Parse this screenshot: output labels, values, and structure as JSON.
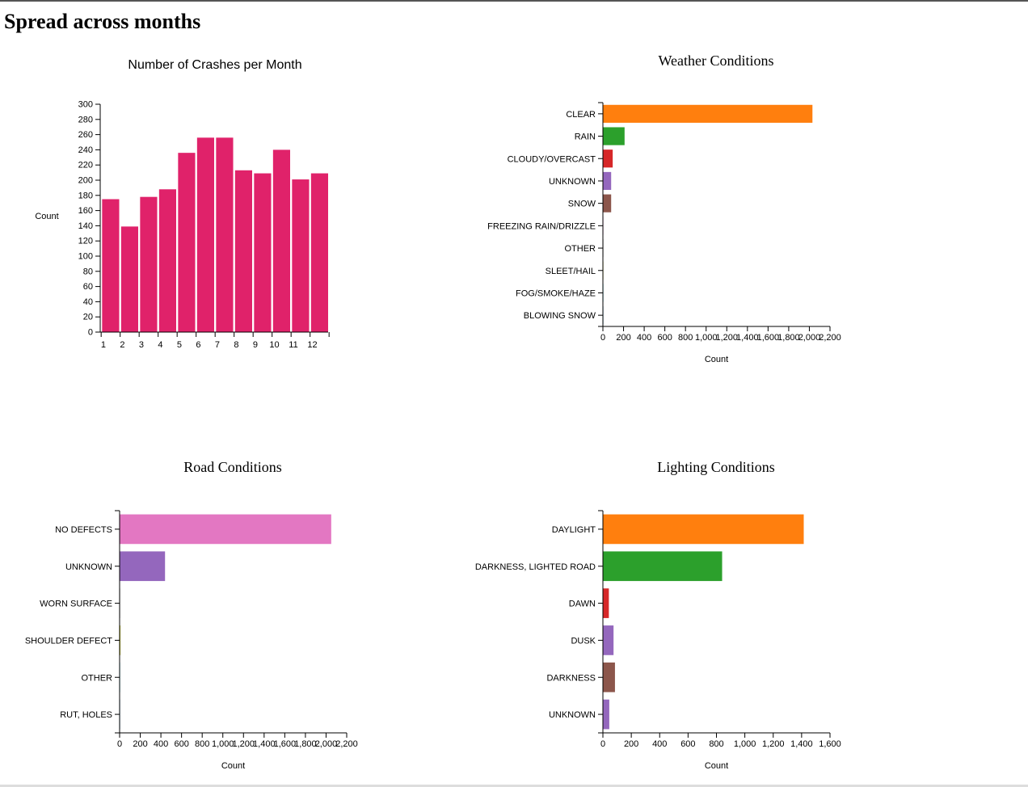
{
  "page": {
    "title": "Spread across months"
  },
  "chart_data": [
    {
      "id": "months",
      "type": "bar",
      "title": "Number of Crashes per Month",
      "xlabel": "",
      "ylabel": "Count",
      "categories": [
        "1",
        "2",
        "3",
        "4",
        "5",
        "6",
        "7",
        "8",
        "9",
        "10",
        "11",
        "12"
      ],
      "values": [
        175,
        139,
        178,
        188,
        236,
        256,
        256,
        213,
        209,
        240,
        201,
        209
      ],
      "ylim": [
        0,
        300
      ],
      "yticks": [
        0,
        20,
        40,
        60,
        80,
        100,
        120,
        140,
        160,
        180,
        200,
        220,
        240,
        260,
        280,
        300
      ],
      "color": "#e0226a"
    },
    {
      "id": "weather",
      "type": "bar",
      "orientation": "horizontal",
      "title": "Weather Conditions",
      "xlabel": "Count",
      "ylabel": "",
      "categories": [
        "CLEAR",
        "RAIN",
        "CLOUDY/OVERCAST",
        "UNKNOWN",
        "SNOW",
        "FREEZING RAIN/DRIZZLE",
        "OTHER",
        "SLEET/HAIL",
        "FOG/SMOKE/HAZE",
        "BLOWING SNOW"
      ],
      "values": [
        2030,
        210,
        95,
        80,
        80,
        3,
        3,
        3,
        3,
        2
      ],
      "colors": [
        "#ff7f0e",
        "#2ca02c",
        "#d62728",
        "#9467bd",
        "#8c564b",
        "#e377c2",
        "#7f7f7f",
        "#bcbd22",
        "#17becf",
        "#1f77b4"
      ],
      "xlim": [
        0,
        2200
      ],
      "xticks": [
        0,
        200,
        400,
        600,
        800,
        1000,
        1200,
        1400,
        1600,
        1800,
        2000,
        2200
      ],
      "xtick_labels": [
        "0",
        "200",
        "400",
        "600",
        "800",
        "1,000",
        "1,200",
        "1,400",
        "1,600",
        "1,800",
        "2,000",
        "2,200"
      ]
    },
    {
      "id": "road",
      "type": "bar",
      "orientation": "horizontal",
      "title": "Road Conditions",
      "xlabel": "Count",
      "ylabel": "",
      "categories": [
        "NO DEFECTS",
        "UNKNOWN",
        "WORN SURFACE",
        "SHOULDER DEFECT",
        "OTHER",
        "RUT, HOLES"
      ],
      "values": [
        2050,
        440,
        3,
        8,
        2,
        1
      ],
      "colors": [
        "#e377c2",
        "#9467bd",
        "#7f7f7f",
        "#bcbd22",
        "#17becf",
        "#1f77b4"
      ],
      "xlim": [
        0,
        2200
      ],
      "xticks": [
        0,
        200,
        400,
        600,
        800,
        1000,
        1200,
        1400,
        1600,
        1800,
        2000,
        2200
      ],
      "xtick_labels": [
        "0",
        "200",
        "400",
        "600",
        "800",
        "1,000",
        "1,200",
        "1,400",
        "1,600",
        "1,800",
        "2,000",
        "2,200"
      ]
    },
    {
      "id": "lighting",
      "type": "bar",
      "orientation": "horizontal",
      "title": "Lighting Conditions",
      "xlabel": "Count",
      "ylabel": "",
      "categories": [
        "DAYLIGHT",
        "DARKNESS, LIGHTED ROAD",
        "DAWN",
        "DUSK",
        "DARKNESS",
        "UNKNOWN"
      ],
      "values": [
        1415,
        840,
        42,
        75,
        85,
        45
      ],
      "colors": [
        "#ff7f0e",
        "#2ca02c",
        "#d62728",
        "#9467bd",
        "#8c564b",
        "#9467bd"
      ],
      "xlim": [
        0,
        1600
      ],
      "xticks": [
        0,
        200,
        400,
        600,
        800,
        1000,
        1200,
        1400,
        1600
      ],
      "xtick_labels": [
        "0",
        "200",
        "400",
        "600",
        "800",
        "1,000",
        "1,200",
        "1,400",
        "1,600"
      ]
    }
  ]
}
